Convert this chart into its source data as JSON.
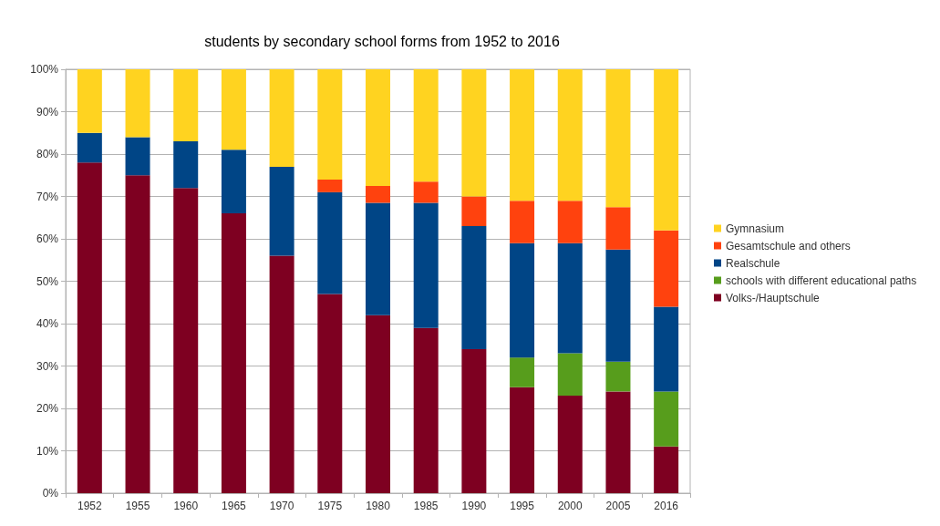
{
  "chart_data": {
    "type": "bar",
    "title": "students by secondary school forms from 1952 to 2016",
    "categories": [
      "1952",
      "1955",
      "1960",
      "1965",
      "1970",
      "1975",
      "1980",
      "1985",
      "1990",
      "1995",
      "2000",
      "2005",
      "2016"
    ],
    "stacked": true,
    "series": [
      {
        "name": "Volks-/Hauptschule",
        "color": "#7e0021",
        "values": [
          78,
          75,
          72,
          66,
          56,
          47,
          42,
          39,
          34,
          25,
          23,
          24,
          11
        ]
      },
      {
        "name": "schools with different educational paths",
        "color": "#579d1c",
        "values": [
          0,
          0,
          0,
          0,
          0,
          0,
          0,
          0,
          0,
          7,
          10,
          7,
          13
        ]
      },
      {
        "name": "Realschule",
        "color": "#004586",
        "values": [
          7,
          9,
          11,
          15,
          21,
          24,
          26.5,
          29.5,
          29,
          27,
          26,
          26.5,
          20
        ]
      },
      {
        "name": "Gesamtschule and others",
        "color": "#ff420e",
        "values": [
          0,
          0,
          0,
          0,
          0,
          3,
          4,
          5,
          7,
          10,
          10,
          10,
          18
        ]
      },
      {
        "name": "Gymnasium",
        "color": "#ffd320",
        "values": [
          15,
          16,
          17,
          19,
          23,
          26,
          27.5,
          26.5,
          30,
          31,
          31,
          32.5,
          38
        ]
      }
    ],
    "ylim": [
      0,
      100
    ],
    "yticks": [
      {
        "value": 0,
        "label": "0%"
      },
      {
        "value": 10,
        "label": "10%"
      },
      {
        "value": 20,
        "label": "20%"
      },
      {
        "value": 30,
        "label": "30%"
      },
      {
        "value": 40,
        "label": "40%"
      },
      {
        "value": 50,
        "label": "50%"
      },
      {
        "value": 60,
        "label": "60%"
      },
      {
        "value": 70,
        "label": "70%"
      },
      {
        "value": 80,
        "label": "80%"
      },
      {
        "value": 90,
        "label": "90%"
      },
      {
        "value": 100,
        "label": "100%"
      }
    ],
    "grid": "y",
    "legend": "right"
  }
}
